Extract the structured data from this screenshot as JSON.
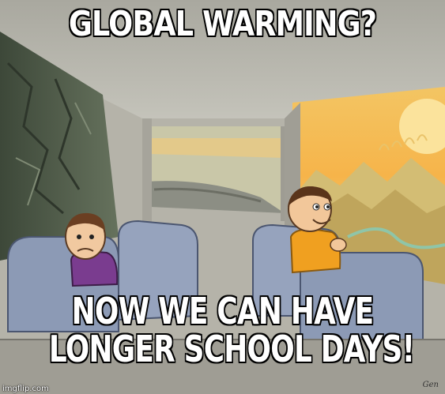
{
  "meme": {
    "top_text": "GLOBAL WARMING?",
    "bottom_text_line1": "NOW WE CAN HAVE",
    "bottom_text_line2": "LONGER SCHOOL DAYS!",
    "watermark": "imgflip.com",
    "signature": "Gen"
  },
  "scene": {
    "left_window_view": "dark rocky cliff",
    "right_window_view": "sunny mountains",
    "left_passenger": "sad boy",
    "right_passenger": "happy boy"
  },
  "colors": {
    "bus_interior": "#b8b6ad",
    "seat": "#8a9ab8",
    "sky_sunset": "#f6b44a",
    "mountains": "#c9b26a",
    "cliff": "#4d5a47",
    "sad_boy_shirt": "#7a3c8f",
    "happy_boy_shirt": "#f0a020"
  }
}
